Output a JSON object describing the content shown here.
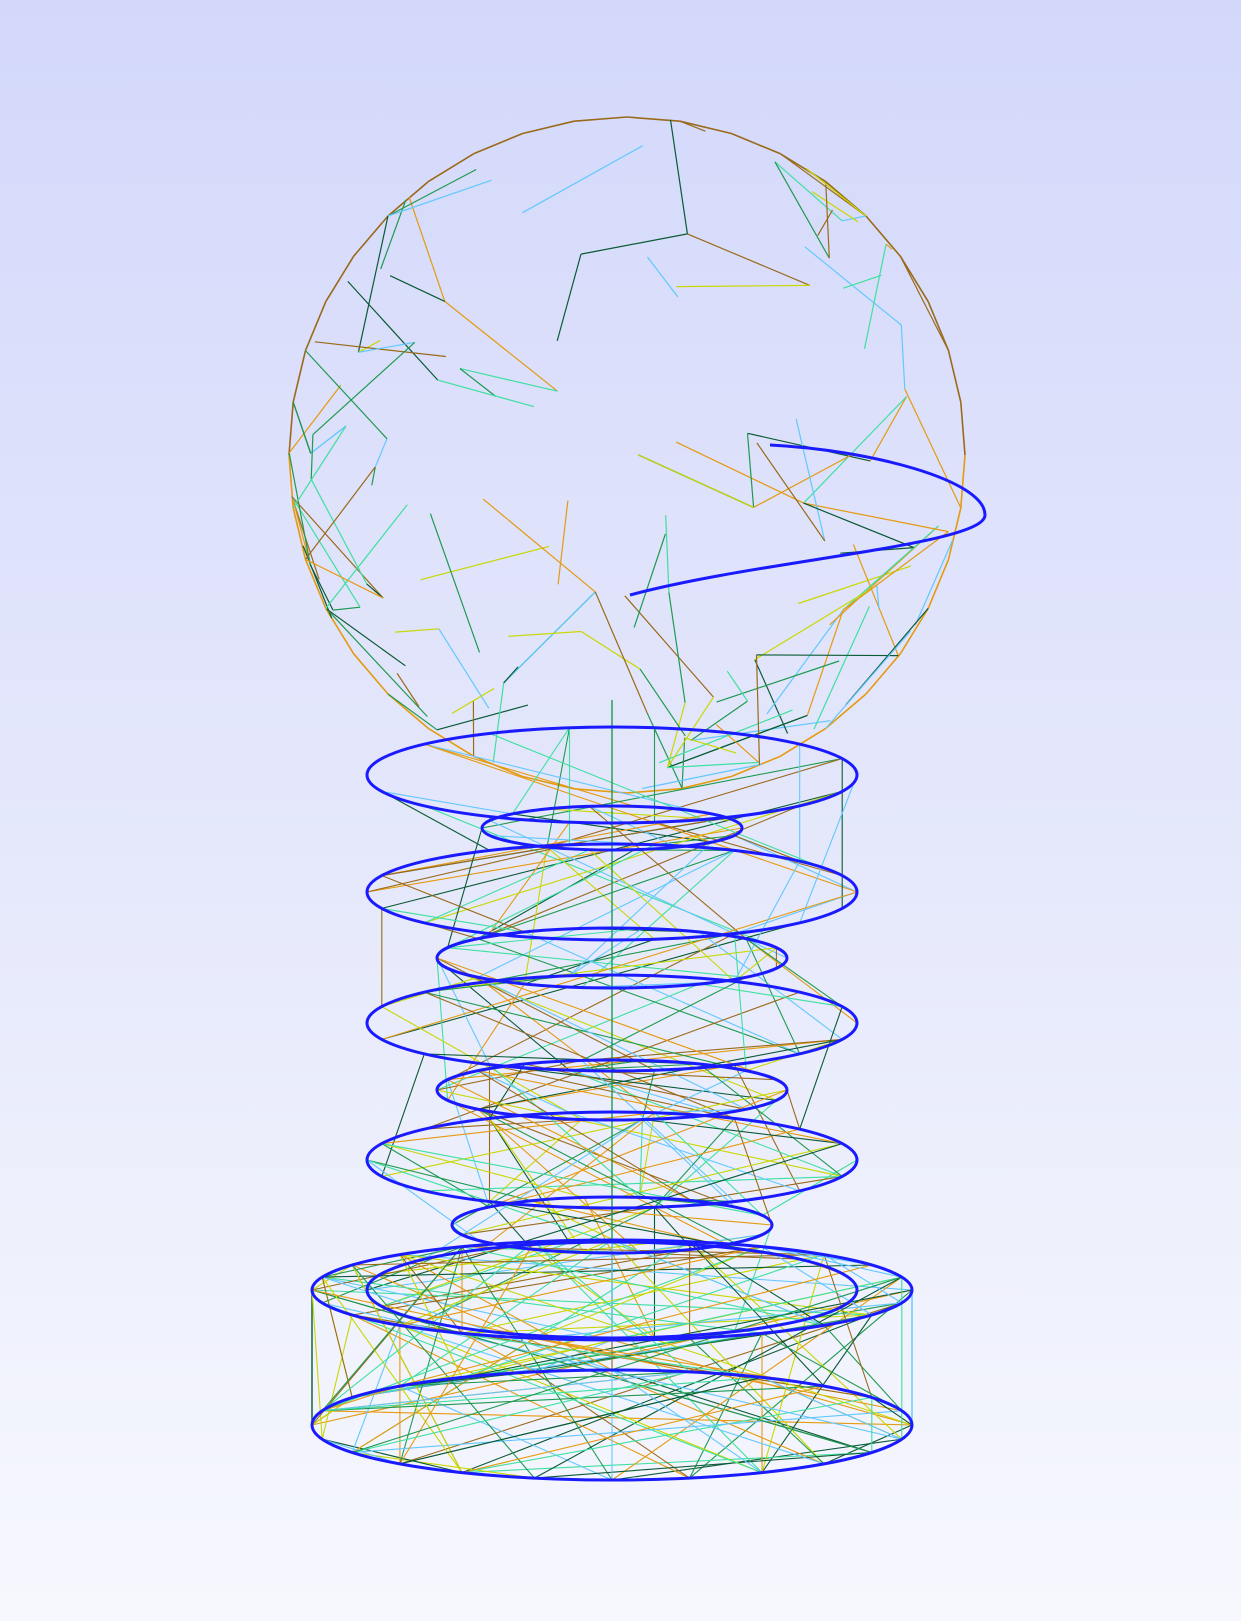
{
  "viewer": {
    "background": {
      "top": "#d3d8fb",
      "bottom": "#f7f8fe"
    },
    "render_mode": "wireframe",
    "model": {
      "parts": [
        "sphere",
        "stacked-cones",
        "cylinder-base"
      ],
      "mesh_colors": [
        "#0a5a35",
        "#1f9a4f",
        "#3ee0a0",
        "#62c8ff",
        "#e59a10",
        "#9a6a1a",
        "#c8d800"
      ],
      "edge_curve_color": "#1a1aff"
    }
  }
}
